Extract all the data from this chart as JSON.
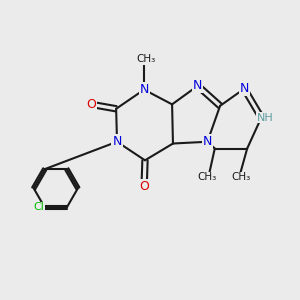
{
  "bg_color": "#ebebeb",
  "atom_color_N": "#0000dd",
  "atom_color_O": "#dd0000",
  "atom_color_Cl": "#00bb00",
  "atom_color_H": "#5f9ea0",
  "atom_color_C": "#1a1a1a",
  "bond_color": "#1a1a1a",
  "figsize": [
    3.0,
    3.0
  ],
  "dpi": 100,
  "xlim": [
    0,
    10
  ],
  "ylim": [
    0,
    10
  ]
}
